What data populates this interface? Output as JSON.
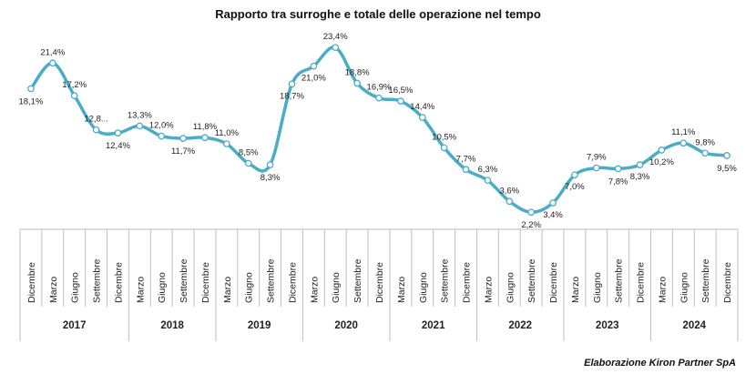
{
  "chart_data": {
    "type": "line",
    "title": "Rapporto tra surroghe e totale delle operazione nel tempo",
    "xlabel": "",
    "ylabel": "",
    "ylim": [
      0,
      26
    ],
    "grid": false,
    "legend": "none",
    "line_color": "#4bacc6",
    "categories": [
      {
        "month": "Dicembre",
        "year": "2017"
      },
      {
        "month": "Marzo",
        "year": "2017"
      },
      {
        "month": "Giugno",
        "year": "2017"
      },
      {
        "month": "Settembre",
        "year": "2017"
      },
      {
        "month": "Dicembre",
        "year": "2017"
      },
      {
        "month": "Marzo",
        "year": "2018"
      },
      {
        "month": "Giugno",
        "year": "2018"
      },
      {
        "month": "Settembre",
        "year": "2018"
      },
      {
        "month": "Dicembre",
        "year": "2018"
      },
      {
        "month": "Marzo",
        "year": "2019"
      },
      {
        "month": "Giugno",
        "year": "2019"
      },
      {
        "month": "Settembre",
        "year": "2019"
      },
      {
        "month": "Dicembre",
        "year": "2019"
      },
      {
        "month": "Marzo",
        "year": "2020"
      },
      {
        "month": "Giugno",
        "year": "2020"
      },
      {
        "month": "Settembre",
        "year": "2020"
      },
      {
        "month": "Dicembre",
        "year": "2020"
      },
      {
        "month": "Marzo",
        "year": "2021"
      },
      {
        "month": "Giugno",
        "year": "2021"
      },
      {
        "month": "Settembre",
        "year": "2021"
      },
      {
        "month": "Dicembre",
        "year": "2021"
      },
      {
        "month": "Marzo",
        "year": "2022"
      },
      {
        "month": "Giugno",
        "year": "2022"
      },
      {
        "month": "Settembre",
        "year": "2022"
      },
      {
        "month": "Dicembre",
        "year": "2022"
      },
      {
        "month": "Marzo",
        "year": "2023"
      },
      {
        "month": "Giugno",
        "year": "2023"
      },
      {
        "month": "Settembre",
        "year": "2023"
      },
      {
        "month": "Dicembre",
        "year": "2023"
      },
      {
        "month": "Marzo",
        "year": "2024"
      },
      {
        "month": "Giugno",
        "year": "2024"
      },
      {
        "month": "Settembre",
        "year": "2024"
      },
      {
        "month": "Dicembre",
        "year": "2024"
      }
    ],
    "years": [
      "2017",
      "2018",
      "2019",
      "2020",
      "2021",
      "2022",
      "2023",
      "2024"
    ],
    "series": [
      {
        "values": [
          18.1,
          21.4,
          17.2,
          12.8,
          12.4,
          13.3,
          12.0,
          11.7,
          11.8,
          11.0,
          8.5,
          8.3,
          18.7,
          21.0,
          23.4,
          18.8,
          16.9,
          16.5,
          14.4,
          10.5,
          7.7,
          6.3,
          3.6,
          2.2,
          3.4,
          7.0,
          7.9,
          7.8,
          8.3,
          10.2,
          11.1,
          9.8,
          9.5
        ],
        "labels": [
          "18,1%",
          "21,4%",
          "17,2%",
          "12,8...",
          "12,4%",
          "13,3%",
          "12,0%",
          "11,7%",
          "11,8%",
          "11,0%",
          "8,5%",
          "8,3%",
          "18,7%",
          "21,0%",
          "23,4%",
          "18,8%",
          "16,9%",
          "16,5%",
          "14,4%",
          "10,5%",
          "7,7%",
          "6,3%",
          "3,6%",
          "2,2%",
          "3,4%",
          "7,0%",
          "7,9%",
          "7,8%",
          "8,3%",
          "10,2%",
          "11,1%",
          "9,8%",
          "9,5%"
        ]
      }
    ]
  },
  "footer": {
    "source": "Elaborazione Kiron Partner SpA"
  }
}
